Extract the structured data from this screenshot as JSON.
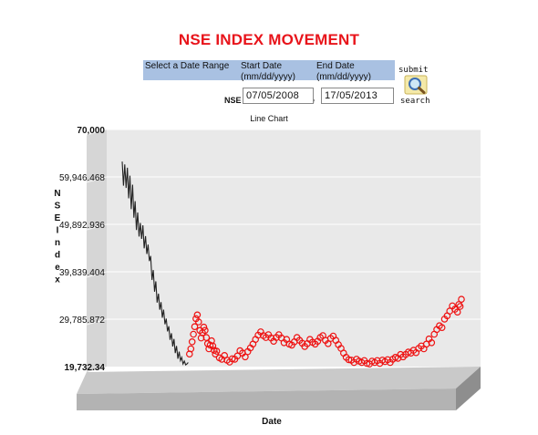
{
  "page": {
    "title": "NSE INDEX MOVEMENT",
    "range_label": "Select a Date Range",
    "start_label_1": "Start Date",
    "start_label_2": "(mm/dd/yyyy)",
    "end_label_1": "End Date",
    "end_label_2": "(mm/dd/yyyy)",
    "start_value": "07/05/2008",
    "end_value": "17/05/2013",
    "submit_label": "submit",
    "search_label": "search",
    "obscured_text_1": "NSE",
    "obscured_text_2": "e"
  },
  "chart_data": {
    "type": "line",
    "title": "Line Chart",
    "xlabel": "Date",
    "ylabel": "NSE Index",
    "ylim": [
      19732.34,
      70000
    ],
    "yticks": [
      "70,000",
      "59,946.468",
      "49,892.936",
      "39,839.404",
      "29,785.872",
      "19,732.34"
    ],
    "x_range": [
      "07/05/2008",
      "17/05/2013"
    ],
    "grid": true,
    "colors": {
      "history": "#222222",
      "markers": "#ee1111",
      "title": "#e8141b",
      "range_bar": "#a9c1e2"
    },
    "series": [
      {
        "style": "line",
        "x": [
          "2008-05-07",
          "2008-05-14",
          "2008-05-21",
          "2008-05-28",
          "2008-06-04",
          "2008-06-11",
          "2008-06-18",
          "2008-06-25",
          "2008-07-02",
          "2008-07-09",
          "2008-07-16",
          "2008-07-23",
          "2008-07-30",
          "2008-08-06",
          "2008-08-13",
          "2008-08-20",
          "2008-08-27",
          "2008-09-03",
          "2008-09-10",
          "2008-09-17",
          "2008-09-24",
          "2008-10-01",
          "2008-10-08",
          "2008-10-15",
          "2008-10-22",
          "2008-10-29",
          "2008-11-05",
          "2008-11-12",
          "2008-11-19",
          "2008-11-26",
          "2008-12-03",
          "2008-12-10",
          "2008-12-17",
          "2008-12-24",
          "2008-12-31",
          "2009-01-07",
          "2009-01-14",
          "2009-01-21",
          "2009-01-28",
          "2009-02-04",
          "2009-02-11",
          "2009-02-18",
          "2009-02-25",
          "2009-03-04",
          "2009-03-11",
          "2009-03-18",
          "2009-03-25",
          "2009-04-01",
          "2009-04-08",
          "2009-04-15",
          "2009-04-22",
          "2009-04-29"
        ],
        "y": [
          63200,
          58100,
          62600,
          57600,
          61900,
          55400,
          60200,
          53100,
          58300,
          51300,
          54800,
          48700,
          52400,
          47300,
          50200,
          46800,
          49700,
          44800,
          47400,
          43600,
          45600,
          42100,
          43200,
          38100,
          40200,
          35600,
          37800,
          33300,
          35200,
          31800,
          33400,
          30100,
          31800,
          28700,
          29900,
          27200,
          28300,
          25400,
          26800,
          24000,
          25600,
          22600,
          24100,
          21400,
          22900,
          21000,
          21700,
          20300,
          20900,
          20100,
          20300,
          20600
        ]
      },
      {
        "style": "markers",
        "x": [
          "2009-05-06",
          "2009-05-13",
          "2009-05-20",
          "2009-05-27",
          "2009-06-03",
          "2009-06-10",
          "2009-06-17",
          "2009-06-24",
          "2009-07-01",
          "2009-07-08",
          "2009-07-15",
          "2009-07-22",
          "2009-07-29",
          "2009-08-05",
          "2009-08-12",
          "2009-08-19",
          "2009-08-26",
          "2009-09-02",
          "2009-09-09",
          "2009-09-16",
          "2009-09-23",
          "2009-09-30",
          "2009-10-14",
          "2009-10-28",
          "2009-11-11",
          "2009-11-25",
          "2009-12-09",
          "2009-12-23",
          "2010-01-06",
          "2010-01-20",
          "2010-02-03",
          "2010-02-17",
          "2010-03-03",
          "2010-03-17",
          "2010-03-31",
          "2010-04-14",
          "2010-04-28",
          "2010-05-12",
          "2010-05-26",
          "2010-06-09",
          "2010-06-23",
          "2010-07-07",
          "2010-07-21",
          "2010-08-04",
          "2010-08-18",
          "2010-09-01",
          "2010-09-15",
          "2010-09-29",
          "2010-10-13",
          "2010-10-27",
          "2010-11-10",
          "2010-11-24",
          "2010-12-08",
          "2010-12-22",
          "2011-01-05",
          "2011-01-19",
          "2011-02-02",
          "2011-02-16",
          "2011-03-02",
          "2011-03-16",
          "2011-03-30",
          "2011-04-13",
          "2011-04-27",
          "2011-05-11",
          "2011-05-25",
          "2011-06-08",
          "2011-06-22",
          "2011-07-06",
          "2011-07-20",
          "2011-08-03",
          "2011-08-17",
          "2011-08-31",
          "2011-09-14",
          "2011-09-28",
          "2011-10-12",
          "2011-10-26",
          "2011-11-09",
          "2011-11-23",
          "2011-12-07",
          "2011-12-21",
          "2012-01-04",
          "2012-01-18",
          "2012-02-01",
          "2012-02-15",
          "2012-02-29",
          "2012-03-14",
          "2012-03-28",
          "2012-04-11",
          "2012-04-25",
          "2012-05-09",
          "2012-05-23",
          "2012-06-06",
          "2012-06-20",
          "2012-07-04",
          "2012-07-18",
          "2012-08-01",
          "2012-08-15",
          "2012-08-29",
          "2012-09-12",
          "2012-09-26",
          "2012-10-10",
          "2012-10-24",
          "2012-11-07",
          "2012-11-21",
          "2012-12-05",
          "2012-12-19",
          "2013-01-02",
          "2013-01-16",
          "2013-01-30",
          "2013-02-13",
          "2013-02-27",
          "2013-03-13",
          "2013-03-27",
          "2013-04-10",
          "2013-04-24",
          "2013-05-01",
          "2013-05-08",
          "2013-05-15"
        ],
        "y": [
          22400,
          23500,
          25000,
          26600,
          28200,
          29900,
          30700,
          29200,
          27400,
          25800,
          26900,
          28100,
          27400,
          25900,
          24600,
          23500,
          24300,
          25200,
          24100,
          23200,
          22400,
          23000,
          21600,
          21300,
          22100,
          21100,
          20700,
          21400,
          21300,
          22000,
          23100,
          22600,
          21800,
          22900,
          23700,
          24500,
          25500,
          26400,
          27100,
          26300,
          25900,
          26500,
          25800,
          25100,
          25900,
          26500,
          25800,
          24800,
          25500,
          24500,
          24300,
          25000,
          25900,
          25300,
          24700,
          24000,
          24600,
          25500,
          24900,
          24500,
          25100,
          25900,
          26300,
          25300,
          24600,
          25700,
          26200,
          25300,
          24400,
          23600,
          22600,
          21700,
          21200,
          21100,
          20600,
          21300,
          20900,
          20600,
          21000,
          20400,
          20300,
          20900,
          20600,
          21000,
          20400,
          21100,
          20800,
          21200,
          20600,
          21300,
          21700,
          21500,
          22300,
          21800,
          22300,
          22800,
          22600,
          23200,
          22700,
          23600,
          24100,
          23500,
          24500,
          25600,
          24800,
          26600,
          27600,
          28400,
          28000,
          29800,
          30500,
          31500,
          32600,
          31900,
          31300,
          32900,
          32500,
          34000
        ]
      }
    ]
  }
}
